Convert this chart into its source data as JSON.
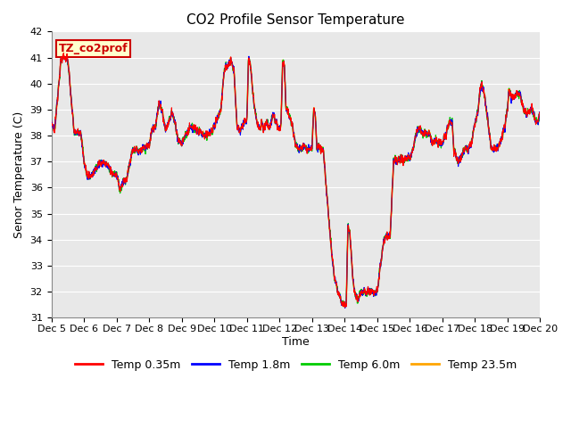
{
  "title": "CO2 Profile Sensor Temperature",
  "xlabel": "Time",
  "ylabel": "Senor Temperature (C)",
  "annotation_text": "TZ_co2prof",
  "ylim": [
    31.0,
    42.0
  ],
  "yticks": [
    31.0,
    32.0,
    33.0,
    34.0,
    35.0,
    36.0,
    37.0,
    38.0,
    39.0,
    40.0,
    41.0,
    42.0
  ],
  "x_tick_labels": [
    "Dec 5",
    "Dec 6",
    "Dec 7",
    "Dec 8",
    "Dec 9",
    "Dec 10",
    "Dec 11",
    "Dec 12",
    "Dec 13",
    "Dec 14",
    "Dec 15",
    "Dec 16",
    "Dec 17",
    "Dec 18",
    "Dec 19",
    "Dec 20"
  ],
  "series": [
    {
      "label": "Temp 0.35m",
      "color": "#FF0000"
    },
    {
      "label": "Temp 1.8m",
      "color": "#0000FF"
    },
    {
      "label": "Temp 6.0m",
      "color": "#00CC00"
    },
    {
      "label": "Temp 23.5m",
      "color": "#FFA500"
    }
  ],
  "bg_color": "#E8E8E8",
  "annotation_bg": "#FFFFCC",
  "annotation_border": "#CC0000",
  "title_fontsize": 11,
  "axis_label_fontsize": 9,
  "tick_fontsize": 8,
  "legend_fontsize": 9,
  "figsize": [
    6.4,
    4.8
  ],
  "dpi": 100
}
